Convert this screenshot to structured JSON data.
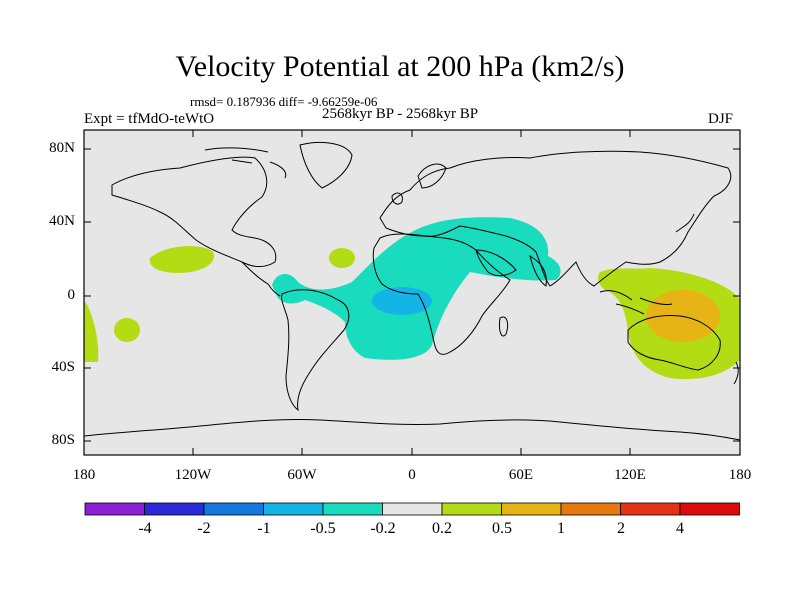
{
  "title": "Velocity Potential at 200 hPa (km2/s)",
  "stats": "rmsd= 0.187936 diff= -9.66259e-06",
  "period": "2568kyr BP - 2568kyr BP",
  "experiment": "Expt = tfMdO-teWtO",
  "season": "DJF",
  "lat_labels": [
    "80N",
    "40N",
    "0",
    "40S",
    "80S"
  ],
  "lon_labels": [
    "180",
    "120W",
    "60W",
    "0",
    "60E",
    "120E",
    "180"
  ],
  "colorbar": {
    "labels": [
      "-4",
      "-2",
      "-1",
      "-0.5",
      "-0.2",
      "0.2",
      "0.5",
      "1",
      "2",
      "4"
    ],
    "colors": [
      "#8a1fd6",
      "#2a2ad8",
      "#1478e0",
      "#14b4e6",
      "#19dcbe",
      "#e6e6e6",
      "#b4dc14",
      "#e6b414",
      "#e6780f",
      "#e63214",
      "#dc0a0a"
    ]
  },
  "colors": {
    "background": "#e6e6e6",
    "positive_weak": "#b4dc14",
    "positive_mid": "#e6b414",
    "negative_weak": "#19dcbe",
    "negative_mid": "#14b4e6"
  }
}
